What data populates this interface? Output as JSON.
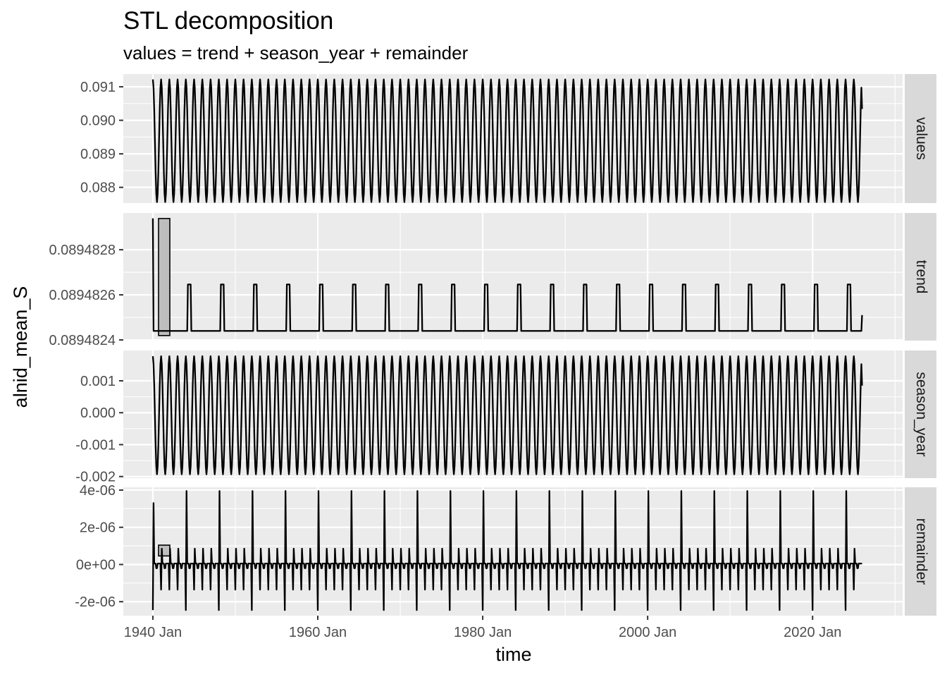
{
  "chart_data": {
    "type": "line",
    "title": "STL decomposition",
    "subtitle": "values = trend + season_year + remainder",
    "xlabel": "time",
    "ylabel": "alnid_mean_S",
    "x_range": [
      "1936-06",
      "2030-12"
    ],
    "x_ticks": [
      {
        "date": "1940-01",
        "label": "1940 Jan"
      },
      {
        "date": "1960-01",
        "label": "1960 Jan"
      },
      {
        "date": "1980-01",
        "label": "1980 Jan"
      },
      {
        "date": "2000-01",
        "label": "2000 Jan"
      },
      {
        "date": "2020-01",
        "label": "2020 Jan"
      }
    ],
    "x_minor_years": [
      1950,
      1970,
      1990,
      2010,
      2030
    ],
    "series_start": "1940-01",
    "series_end": "2026-01",
    "colors": {
      "panel_bg": "#ebebeb",
      "grid": "#ffffff",
      "strip_bg": "#d9d9d9",
      "line": "#000000",
      "scale_bar_fill": "#bebebe",
      "tick_text": "#4d4d4d"
    },
    "panels": [
      {
        "strip": "values",
        "ylim": [
          0.08753,
          0.09138
        ],
        "y_ticks": [
          {
            "value": 0.091,
            "label": "0.091"
          },
          {
            "value": 0.09,
            "label": "0.090"
          },
          {
            "value": 0.089,
            "label": "0.089"
          },
          {
            "value": 0.088,
            "label": "0.088"
          }
        ],
        "scale_bar": [
          0.08943,
          0.08943
        ],
        "pattern": "sine",
        "max": 0.09122,
        "min": 0.08756,
        "final_value": 0.09034
      },
      {
        "strip": "trend",
        "ylim": [
          0.089482397,
          0.089482963
        ],
        "y_ticks": [
          {
            "value": 0.0894828,
            "label": "0.0894828"
          },
          {
            "value": 0.0894826,
            "label": "0.0894826"
          },
          {
            "value": 0.0894824,
            "label": "0.0894824"
          }
        ],
        "scale_bar": [
          0.0894824195,
          0.0894829385
        ],
        "pattern": "trend-spikes",
        "start_value": 0.089482939,
        "baseline": 0.08948244,
        "spike_value": 0.089482646,
        "spike_every_years": 4,
        "first_spike_year": 1944,
        "final_value": 0.08948251
      },
      {
        "strip": "season_year",
        "ylim": [
          -0.00205,
          0.00195
        ],
        "y_ticks": [
          {
            "value": 0.001,
            "label": "0.001"
          },
          {
            "value": 0.0,
            "label": "0.000"
          },
          {
            "value": -0.001,
            "label": "-0.001"
          },
          {
            "value": -0.002,
            "label": "-0.002"
          }
        ],
        "scale_bar": [
          -8e-05,
          -8e-05
        ],
        "pattern": "sine",
        "max": 0.00177,
        "min": -0.00193,
        "final_value": 0.00085
      },
      {
        "strip": "remainder",
        "ylim": [
          -2.75e-06,
          4.15e-06
        ],
        "y_ticks": [
          {
            "value": 4e-06,
            "label": "4e-06"
          },
          {
            "value": 2e-06,
            "label": "2e-06"
          },
          {
            "value": 0,
            "label": "0e+00"
          },
          {
            "value": -2e-06,
            "label": "-2e-06"
          }
        ],
        "scale_bar": [
          4.6e-07,
          1.04e-06
        ],
        "pattern": "remainder-spikes",
        "small_positive": 8.5e-07,
        "small_negative": -1.35e-06,
        "leap_high": 3.95e-06,
        "leap_low": -2.45e-06,
        "baseline": 5e-08
      }
    ]
  }
}
